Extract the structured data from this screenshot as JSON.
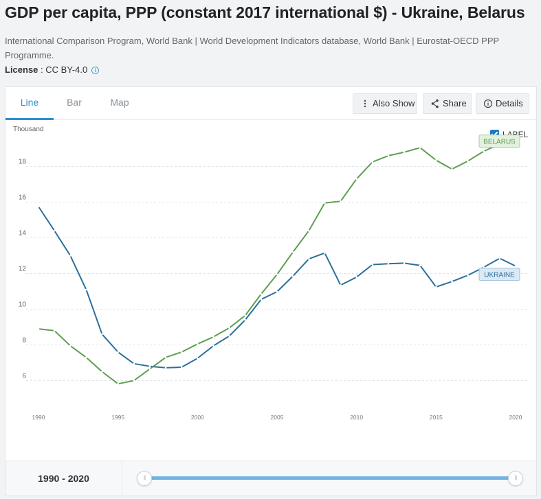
{
  "header": {
    "title": "GDP per capita, PPP (constant 2017 international $) - Ukraine, Belarus",
    "source": "International Comparison Program, World Bank | World Development Indicators database, World Bank | Eurostat-OECD PPP Programme.",
    "license_label": "License",
    "license_value": " : CC BY-4.0"
  },
  "tabs": [
    {
      "label": "Line",
      "active": true
    },
    {
      "label": "Bar",
      "active": false
    },
    {
      "label": "Map",
      "active": false
    }
  ],
  "toolbar": {
    "also_show": "Also Show",
    "share": "Share",
    "details": "Details"
  },
  "plot": {
    "unit_label": "Thousand",
    "label_toggle": "LABEL"
  },
  "footer": {
    "range_label": "1990 - 2020"
  },
  "colors": {
    "ukraine": "#2a6f9b",
    "belarus": "#5d9e50",
    "accent": "#2f8ecf"
  },
  "chart_data": {
    "type": "line",
    "title": "GDP per capita, PPP (constant 2017 international $) - Ukraine, Belarus",
    "ylabel": "Thousand",
    "xlabel": "",
    "x": [
      1990,
      1991,
      1992,
      1993,
      1994,
      1995,
      1996,
      1997,
      1998,
      1999,
      2000,
      2001,
      2002,
      2003,
      2004,
      2005,
      2006,
      2007,
      2008,
      2009,
      2010,
      2011,
      2012,
      2013,
      2014,
      2015,
      2016,
      2017,
      2018,
      2019,
      2020
    ],
    "xticks": [
      "1990",
      "1995",
      "2000",
      "2005",
      "2010",
      "2015",
      "2020"
    ],
    "yticks": [
      "6",
      "8",
      "10",
      "12",
      "14",
      "16",
      "18"
    ],
    "ylim": [
      5,
      20
    ],
    "xlim": [
      1990,
      2020
    ],
    "grid": "horizontal dashed",
    "series": [
      {
        "name": "UKRAINE",
        "values": [
          15.75,
          14.4,
          13.0,
          11.1,
          8.6,
          7.6,
          6.95,
          6.8,
          6.72,
          6.75,
          7.25,
          7.95,
          8.5,
          9.4,
          10.55,
          10.98,
          11.85,
          12.82,
          13.15,
          11.35,
          11.8,
          12.5,
          12.55,
          12.58,
          12.45,
          11.25,
          11.55,
          11.9,
          12.35,
          12.85,
          12.42
        ]
      },
      {
        "name": "BELARUS",
        "values": [
          8.9,
          8.8,
          7.95,
          7.3,
          6.5,
          5.82,
          6.0,
          6.65,
          7.3,
          7.6,
          8.05,
          8.45,
          8.95,
          9.65,
          10.85,
          11.95,
          13.2,
          14.4,
          15.95,
          16.05,
          17.3,
          18.25,
          18.6,
          18.8,
          19.05,
          18.35,
          17.85,
          18.3,
          18.85,
          19.25,
          19.15
        ]
      }
    ]
  }
}
